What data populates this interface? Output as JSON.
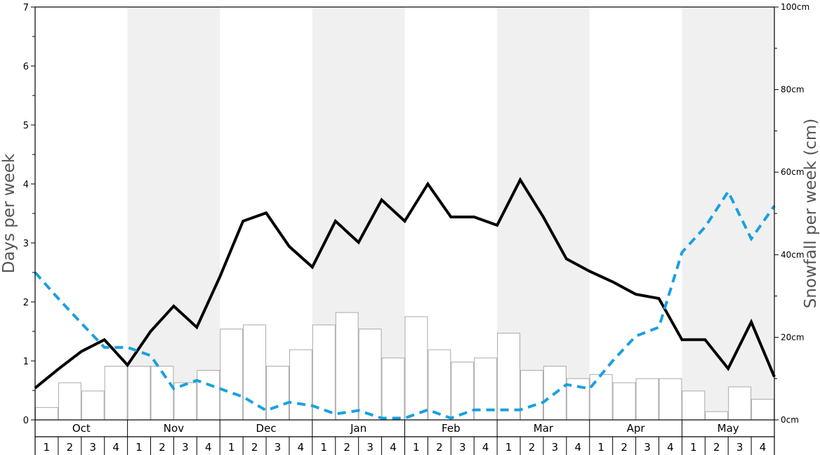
{
  "chart_data": {
    "type": "bar+line",
    "ylabel_left": "Days per week",
    "ylabel_right": "Snowfall per week (cm)",
    "left_ylim": [
      0,
      7
    ],
    "right_ylim": [
      0,
      100
    ],
    "left_ticks": [
      "0",
      "1",
      "2",
      "3",
      "4",
      "5",
      "6",
      "7"
    ],
    "right_ticks": [
      "0cm",
      "20cm",
      "40cm",
      "60cm",
      "80cm",
      "100cm"
    ],
    "grid": false,
    "months": [
      "Oct",
      "Nov",
      "Dec",
      "Jan",
      "Feb",
      "Mar",
      "Apr",
      "May"
    ],
    "weeks": [
      "1",
      "2",
      "3",
      "4"
    ],
    "categories": [
      "Oct 1",
      "Oct 2",
      "Oct 3",
      "Oct 4",
      "Nov 1",
      "Nov 2",
      "Nov 3",
      "Nov 4",
      "Dec 1",
      "Dec 2",
      "Dec 3",
      "Dec 4",
      "Jan 1",
      "Jan 2",
      "Jan 3",
      "Jan 4",
      "Feb 1",
      "Feb 2",
      "Feb 3",
      "Feb 4",
      "Mar 1",
      "Mar 2",
      "Mar 3",
      "Mar 4",
      "Apr 1",
      "Apr 2",
      "Apr 3",
      "Apr 4",
      "May 1",
      "May 2",
      "May 3",
      "May 4"
    ],
    "series": [
      {
        "kind": "bar",
        "axis": "right",
        "color": "#ffffff",
        "stroke": "#aaaaaa",
        "values": [
          3,
          9,
          7,
          13,
          13,
          13,
          9,
          12,
          22,
          23,
          13,
          17,
          23,
          26,
          22,
          15,
          25,
          17,
          14,
          15,
          21,
          12,
          13,
          10,
          11,
          9,
          10,
          10,
          7,
          2,
          8,
          5
        ]
      },
      {
        "kind": "line",
        "axis": "left",
        "color": "#000000",
        "style": "solid",
        "points": [
          [
            0.0,
            0.54
          ],
          [
            1.0,
            0.86
          ],
          [
            2.0,
            1.16
          ],
          [
            3.0,
            1.36
          ],
          [
            4.0,
            0.93
          ],
          [
            5.0,
            1.5
          ],
          [
            6.0,
            1.93
          ],
          [
            7.0,
            1.57
          ],
          [
            8.0,
            2.43
          ],
          [
            9.0,
            3.37
          ],
          [
            10.0,
            3.51
          ],
          [
            11.0,
            2.94
          ],
          [
            12.0,
            2.59
          ],
          [
            13.0,
            3.37
          ],
          [
            14.0,
            3.01
          ],
          [
            15.0,
            3.73
          ],
          [
            16.0,
            3.37
          ],
          [
            17.0,
            4.0
          ],
          [
            18.0,
            3.44
          ],
          [
            19.0,
            3.44
          ],
          [
            20.0,
            3.3
          ],
          [
            21.0,
            4.07
          ],
          [
            22.0,
            3.44
          ],
          [
            23.0,
            2.73
          ],
          [
            24.0,
            2.52
          ],
          [
            25.0,
            2.34
          ],
          [
            26.0,
            2.13
          ],
          [
            27.0,
            2.06
          ],
          [
            28.0,
            1.36
          ],
          [
            29.0,
            1.36
          ],
          [
            30.0,
            0.87
          ],
          [
            31.0,
            1.66
          ],
          [
            32.0,
            0.73
          ]
        ]
      },
      {
        "kind": "line",
        "axis": "left",
        "color": "#1aa0e0",
        "style": "dashed",
        "points": [
          [
            0.0,
            2.5
          ],
          [
            1.0,
            2.06
          ],
          [
            2.0,
            1.64
          ],
          [
            3.0,
            1.23
          ],
          [
            4.0,
            1.23
          ],
          [
            5.0,
            1.09
          ],
          [
            6.0,
            0.53
          ],
          [
            7.0,
            0.67
          ],
          [
            8.0,
            0.53
          ],
          [
            9.0,
            0.39
          ],
          [
            10.0,
            0.16
          ],
          [
            11.0,
            0.3
          ],
          [
            12.0,
            0.24
          ],
          [
            13.0,
            0.1
          ],
          [
            14.0,
            0.16
          ],
          [
            15.0,
            0.03
          ],
          [
            16.0,
            0.03
          ],
          [
            17.0,
            0.17
          ],
          [
            18.0,
            0.03
          ],
          [
            19.0,
            0.17
          ],
          [
            20.0,
            0.17
          ],
          [
            21.0,
            0.17
          ],
          [
            22.0,
            0.3
          ],
          [
            23.0,
            0.6
          ],
          [
            24.0,
            0.53
          ],
          [
            25.0,
            1.0
          ],
          [
            26.0,
            1.42
          ],
          [
            27.0,
            1.57
          ],
          [
            28.0,
            2.84
          ],
          [
            29.0,
            3.27
          ],
          [
            30.0,
            3.87
          ],
          [
            31.0,
            3.07
          ],
          [
            32.0,
            3.63
          ]
        ]
      }
    ],
    "shaded_months": [
      "Nov",
      "Jan",
      "Mar",
      "May"
    ],
    "shade_color": "#f0f0f0"
  }
}
